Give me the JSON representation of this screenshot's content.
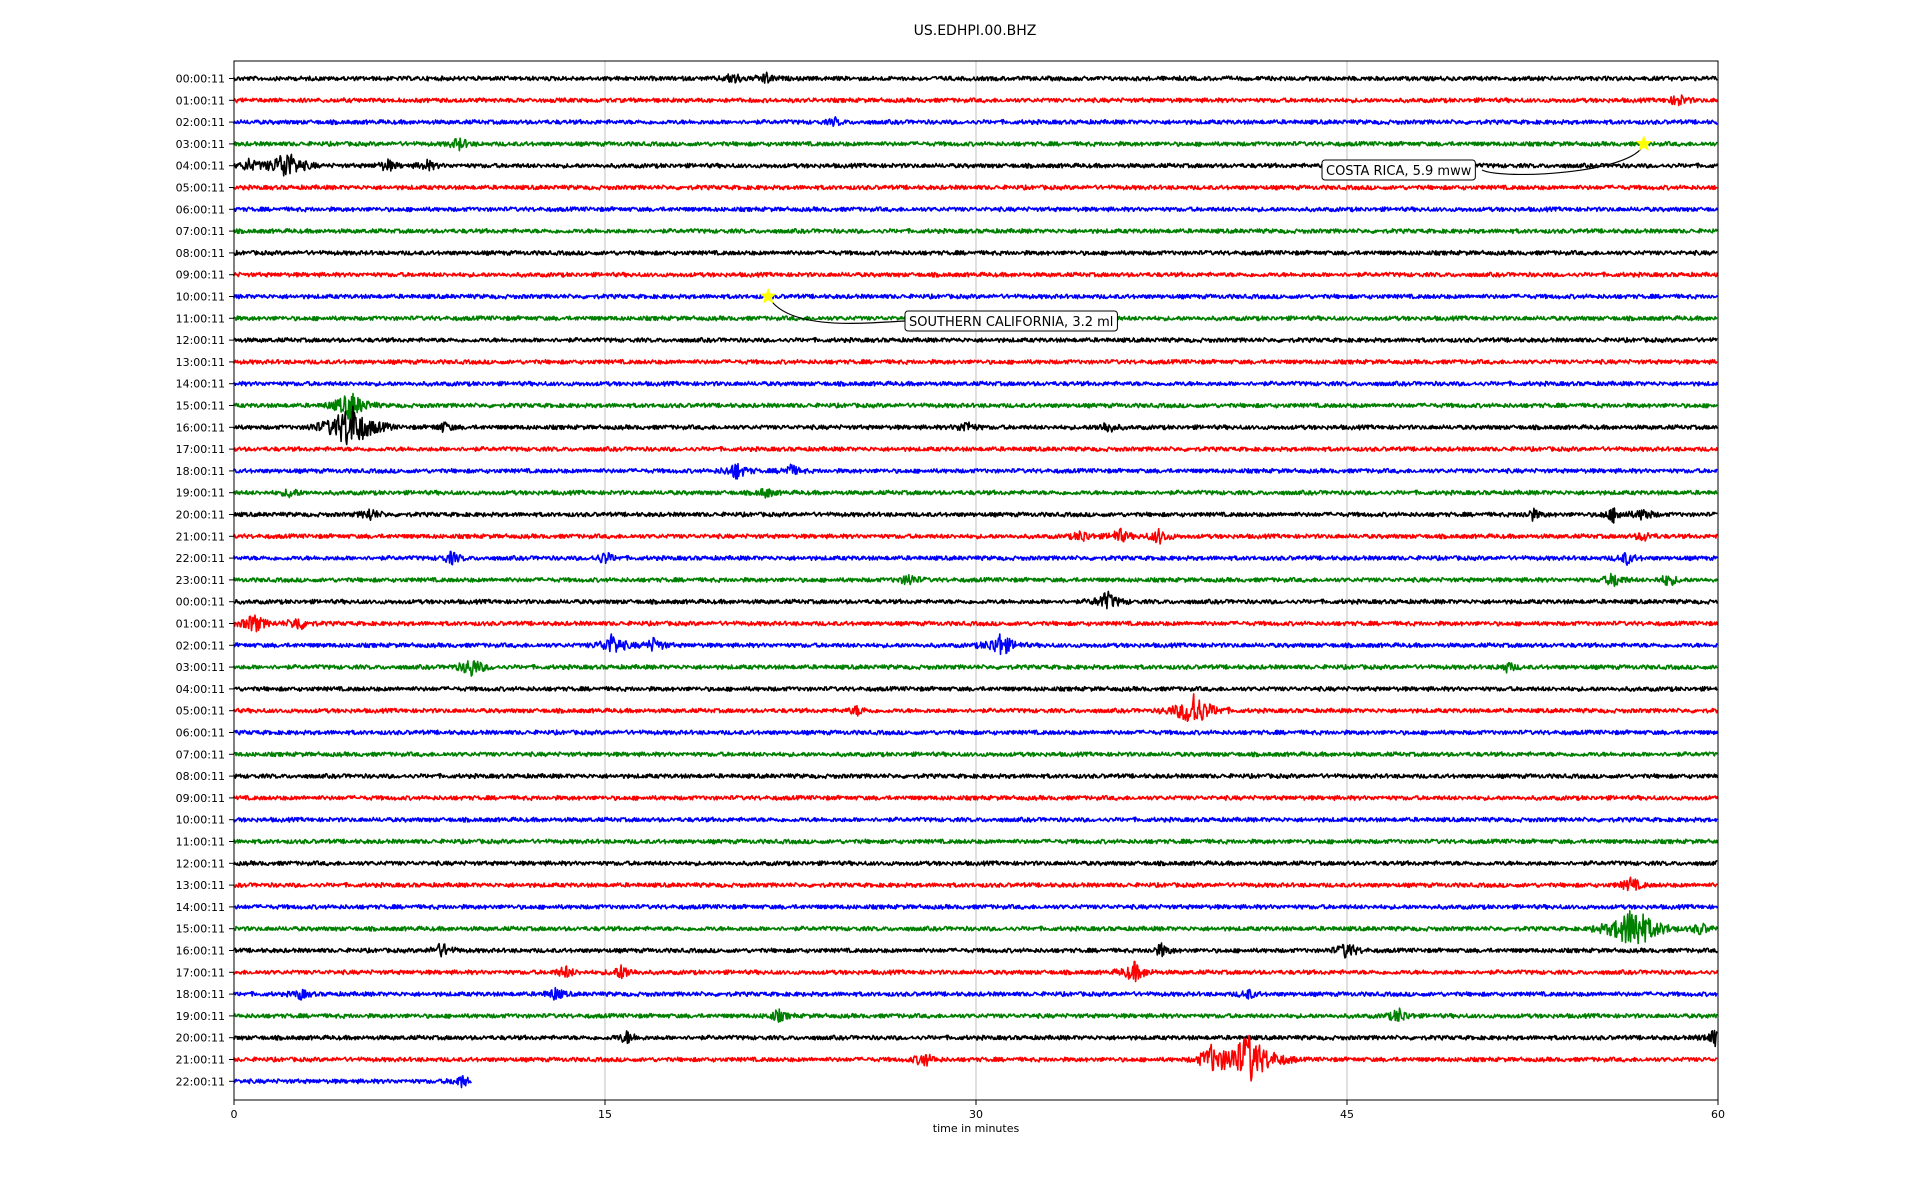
{
  "chart_data": {
    "type": "line",
    "title": "US.EDHPI.00.BHZ",
    "xlabel": "time in minutes",
    "xlim": [
      0,
      60
    ],
    "x_ticks": [
      0,
      15,
      30,
      45,
      60
    ],
    "grid_x": true,
    "trace_colors": [
      "#000000",
      "#ff0000",
      "#0000ff",
      "#008000"
    ],
    "row_labels": [
      "00:00:11",
      "01:00:11",
      "02:00:11",
      "03:00:11",
      "04:00:11",
      "05:00:11",
      "06:00:11",
      "07:00:11",
      "08:00:11",
      "09:00:11",
      "10:00:11",
      "11:00:11",
      "12:00:11",
      "13:00:11",
      "14:00:11",
      "15:00:11",
      "16:00:11",
      "17:00:11",
      "18:00:11",
      "19:00:11",
      "20:00:11",
      "21:00:11",
      "22:00:11",
      "23:00:11",
      "00:00:11",
      "01:00:11",
      "02:00:11",
      "03:00:11",
      "04:00:11",
      "05:00:11",
      "06:00:11",
      "07:00:11",
      "08:00:11",
      "09:00:11",
      "10:00:11",
      "11:00:11",
      "12:00:11",
      "13:00:11",
      "14:00:11",
      "15:00:11",
      "16:00:11",
      "17:00:11",
      "18:00:11",
      "19:00:11",
      "20:00:11",
      "21:00:11",
      "22:00:11"
    ],
    "last_row_end_minute": 9.6,
    "events": [
      {
        "label": "COSTA RICA, 5.9 mww",
        "row": 3,
        "minute": 57.0,
        "marker": "star",
        "marker_color": "#ffff00"
      },
      {
        "label": "SOUTHERN CALIFORNIA, 3.2 ml",
        "row": 10,
        "minute": 21.6,
        "marker": "star",
        "marker_color": "#ffff00"
      }
    ],
    "bursts": [
      {
        "row": 0,
        "minute": 20.2,
        "amp": 0.5
      },
      {
        "row": 0,
        "minute": 21.5,
        "amp": 0.45
      },
      {
        "row": 1,
        "minute": 58.4,
        "amp": 0.5
      },
      {
        "row": 2,
        "minute": 24.3,
        "amp": 0.3
      },
      {
        "row": 3,
        "minute": 9.1,
        "amp": 0.5
      },
      {
        "row": 4,
        "minute": 2.1,
        "amp": 1.3
      },
      {
        "row": 4,
        "minute": 0.6,
        "amp": 0.5
      },
      {
        "row": 4,
        "minute": 6.2,
        "amp": 0.5
      },
      {
        "row": 4,
        "minute": 7.8,
        "amp": 0.45
      },
      {
        "row": 15,
        "minute": 4.7,
        "amp": 1.2
      },
      {
        "row": 16,
        "minute": 4.7,
        "amp": 2.0
      },
      {
        "row": 16,
        "minute": 8.5,
        "amp": 0.4
      },
      {
        "row": 16,
        "minute": 29.6,
        "amp": 0.5
      },
      {
        "row": 16,
        "minute": 35.3,
        "amp": 0.5
      },
      {
        "row": 18,
        "minute": 20.3,
        "amp": 0.7
      },
      {
        "row": 18,
        "minute": 22.5,
        "amp": 0.5
      },
      {
        "row": 19,
        "minute": 2.3,
        "amp": 0.4
      },
      {
        "row": 19,
        "minute": 21.5,
        "amp": 0.4
      },
      {
        "row": 20,
        "minute": 5.5,
        "amp": 0.5
      },
      {
        "row": 20,
        "minute": 52.5,
        "amp": 0.45
      },
      {
        "row": 20,
        "minute": 55.8,
        "amp": 0.6
      },
      {
        "row": 20,
        "minute": 57.0,
        "amp": 0.5
      },
      {
        "row": 21,
        "minute": 34.3,
        "amp": 0.5
      },
      {
        "row": 21,
        "minute": 35.8,
        "amp": 0.6
      },
      {
        "row": 21,
        "minute": 37.4,
        "amp": 0.6
      },
      {
        "row": 21,
        "minute": 57.0,
        "amp": 0.4
      },
      {
        "row": 22,
        "minute": 8.8,
        "amp": 0.5
      },
      {
        "row": 22,
        "minute": 15.0,
        "amp": 0.5
      },
      {
        "row": 22,
        "minute": 56.3,
        "amp": 0.5
      },
      {
        "row": 23,
        "minute": 27.3,
        "amp": 0.5
      },
      {
        "row": 23,
        "minute": 55.8,
        "amp": 0.6
      },
      {
        "row": 23,
        "minute": 58.0,
        "amp": 0.5
      },
      {
        "row": 24,
        "minute": 35.3,
        "amp": 0.8
      },
      {
        "row": 25,
        "minute": 0.8,
        "amp": 0.8
      },
      {
        "row": 25,
        "minute": 2.6,
        "amp": 0.6
      },
      {
        "row": 26,
        "minute": 15.3,
        "amp": 0.9
      },
      {
        "row": 26,
        "minute": 17.0,
        "amp": 0.6
      },
      {
        "row": 26,
        "minute": 31.0,
        "amp": 1.0
      },
      {
        "row": 27,
        "minute": 9.6,
        "amp": 0.8
      },
      {
        "row": 27,
        "minute": 51.5,
        "amp": 0.4
      },
      {
        "row": 29,
        "minute": 38.8,
        "amp": 1.5
      },
      {
        "row": 29,
        "minute": 25.2,
        "amp": 0.4
      },
      {
        "row": 37,
        "minute": 56.5,
        "amp": 0.6
      },
      {
        "row": 39,
        "minute": 56.6,
        "amp": 2.0
      },
      {
        "row": 39,
        "minute": 59.3,
        "amp": 0.5
      },
      {
        "row": 40,
        "minute": 8.4,
        "amp": 0.6
      },
      {
        "row": 40,
        "minute": 37.5,
        "amp": 0.5
      },
      {
        "row": 40,
        "minute": 45.0,
        "amp": 0.7
      },
      {
        "row": 41,
        "minute": 13.4,
        "amp": 0.5
      },
      {
        "row": 41,
        "minute": 36.4,
        "amp": 0.8
      },
      {
        "row": 41,
        "minute": 15.7,
        "amp": 0.6
      },
      {
        "row": 42,
        "minute": 2.7,
        "amp": 0.4
      },
      {
        "row": 42,
        "minute": 13.0,
        "amp": 0.5
      },
      {
        "row": 42,
        "minute": 41.0,
        "amp": 0.4
      },
      {
        "row": 43,
        "minute": 22.0,
        "amp": 0.5
      },
      {
        "row": 43,
        "minute": 47.1,
        "amp": 0.6
      },
      {
        "row": 44,
        "minute": 15.9,
        "amp": 0.5
      },
      {
        "row": 44,
        "minute": 59.9,
        "amp": 0.7
      },
      {
        "row": 45,
        "minute": 41.0,
        "amp": 2.2
      },
      {
        "row": 45,
        "minute": 39.5,
        "amp": 0.9
      },
      {
        "row": 45,
        "minute": 27.9,
        "amp": 0.6
      },
      {
        "row": 46,
        "minute": 9.2,
        "amp": 0.5
      }
    ]
  }
}
